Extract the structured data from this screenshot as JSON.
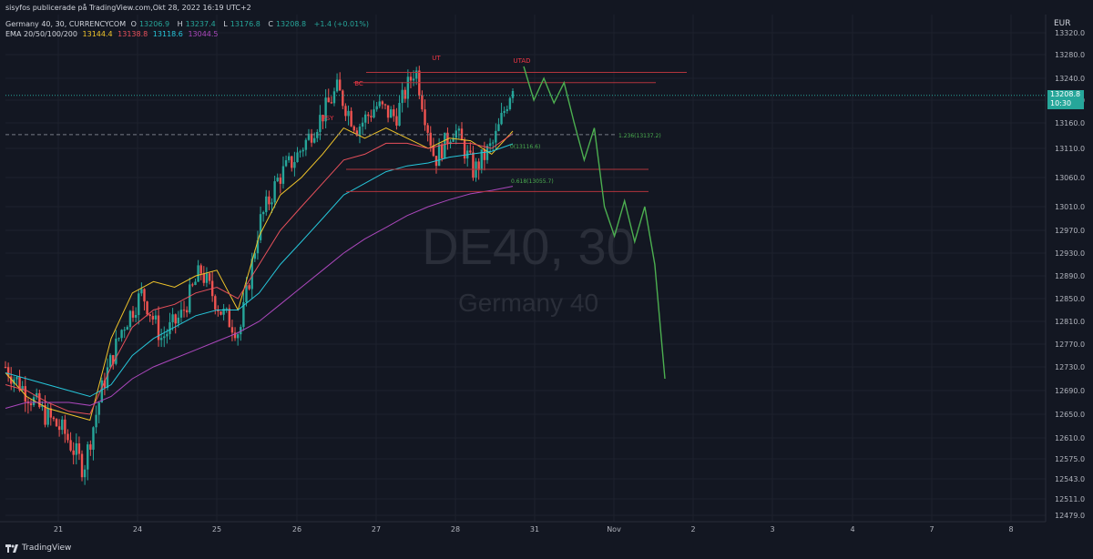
{
  "header": {
    "publisher_line": "sisyfos publicerade på TradingView.com,Okt 28, 2022 16:19 UTC+2",
    "symbol": "Germany 40, 30, CURRENCYCOM",
    "ohlc": [
      {
        "label": "O",
        "value": "13206.9"
      },
      {
        "label": "H",
        "value": "13237.4"
      },
      {
        "label": "L",
        "value": "13176.8"
      },
      {
        "label": "C",
        "value": "13208.8"
      }
    ],
    "change": "+1.4 (+0.01%)",
    "ema_label": "EMA 20/50/100/200",
    "ema_values": [
      "13144.4",
      "13138.8",
      "13118.6",
      "13044.5"
    ]
  },
  "watermark": {
    "symbol": "DE40, 30",
    "name": "Germany 40"
  },
  "currency": "EUR",
  "price_tag": {
    "price": "13208.8",
    "time": "10:30"
  },
  "footer": {
    "brand": "TradingView"
  },
  "colors": {
    "bg": "#131722",
    "up": "#26a69a",
    "down": "#ef5350",
    "ema20": "#f0c42a",
    "ema50": "#e8505b",
    "ema100": "#26c6da",
    "ema200": "#ab47bc",
    "projection": "#4caf50",
    "level": "#b2343c",
    "annot": "#f23645"
  },
  "chart_data": {
    "type": "line",
    "instrument": "Germany 40",
    "timeframe": "30",
    "y_ticks": [
      13320.0,
      13280.0,
      13240.0,
      13200.0,
      13160.0,
      13110.0,
      13060.0,
      13010.0,
      12970.0,
      12930.0,
      12890.0,
      12850.0,
      12810.0,
      12770.0,
      12730.0,
      12690.0,
      12650.0,
      12610.0,
      12575.0,
      12543.0,
      12511.0,
      12479.0
    ],
    "y_tick_labels": [
      "13320.0",
      "13280.0",
      "13240.0",
      "13200.0",
      "13160.0",
      "13110.0",
      "13060.0",
      "13010.0",
      "12970.0",
      "12930.0",
      "12890.0",
      "12850.0",
      "12810.0",
      "12770.0",
      "12730.0",
      "12690.0",
      "12650.0",
      "12610.0",
      "12575.0",
      "12543.0",
      "12511.0",
      "12479.0"
    ],
    "x_tick_labels": [
      "21",
      "24",
      "25",
      "26",
      "27",
      "28",
      "31",
      "Nov",
      "2",
      "3",
      "4",
      "7",
      "8"
    ],
    "series": [
      {
        "name": "EMA 20",
        "values": [
          12720,
          12680,
          12660,
          12650,
          12640,
          12780,
          12860,
          12880,
          12870,
          12890,
          12900,
          12830,
          12960,
          13030,
          13060,
          13100,
          13150,
          13130,
          13150,
          13130,
          13110,
          13130,
          13125,
          13100,
          13144
        ]
      },
      {
        "name": "EMA 50",
        "values": [
          12700,
          12690,
          12670,
          12655,
          12650,
          12730,
          12800,
          12830,
          12840,
          12860,
          12870,
          12850,
          12910,
          12970,
          13010,
          13050,
          13090,
          13100,
          13120,
          13120,
          13110,
          13120,
          13120,
          13110,
          13139
        ]
      },
      {
        "name": "EMA 100",
        "values": [
          12720,
          12710,
          12700,
          12690,
          12680,
          12700,
          12750,
          12780,
          12800,
          12820,
          12830,
          12830,
          12860,
          12910,
          12950,
          12990,
          13030,
          13050,
          13070,
          13080,
          13085,
          13095,
          13100,
          13105,
          13119
        ]
      },
      {
        "name": "EMA 200",
        "values": [
          12660,
          12670,
          12670,
          12670,
          12665,
          12680,
          12710,
          12730,
          12745,
          12760,
          12775,
          12790,
          12810,
          12840,
          12870,
          12900,
          12930,
          12955,
          12975,
          12995,
          13010,
          13022,
          13032,
          13038,
          13045
        ]
      }
    ],
    "price_path": [
      12730,
      12690,
      12650,
      12620,
      12560,
      12700,
      12800,
      12860,
      12780,
      12820,
      12900,
      12830,
      12790,
      12980,
      13060,
      13100,
      13160,
      13220,
      13150,
      13190,
      13170,
      13260,
      13090,
      13150,
      13070,
      13120,
      13230
    ],
    "projection": [
      13260,
      13200,
      13240,
      13195,
      13232,
      13160,
      13090,
      13150,
      13010,
      12960,
      13020,
      12950,
      13010,
      12910,
      12710
    ],
    "levels": [
      13250,
      13232,
      13137,
      13074,
      13036
    ],
    "annotations": [
      "PSY",
      "BC",
      "UT",
      "UTAD"
    ],
    "fib_labels": [
      "0(13116.6)",
      "0.618(13055.7)",
      "1.236(13137.2)"
    ],
    "current_price": 13208.8
  }
}
